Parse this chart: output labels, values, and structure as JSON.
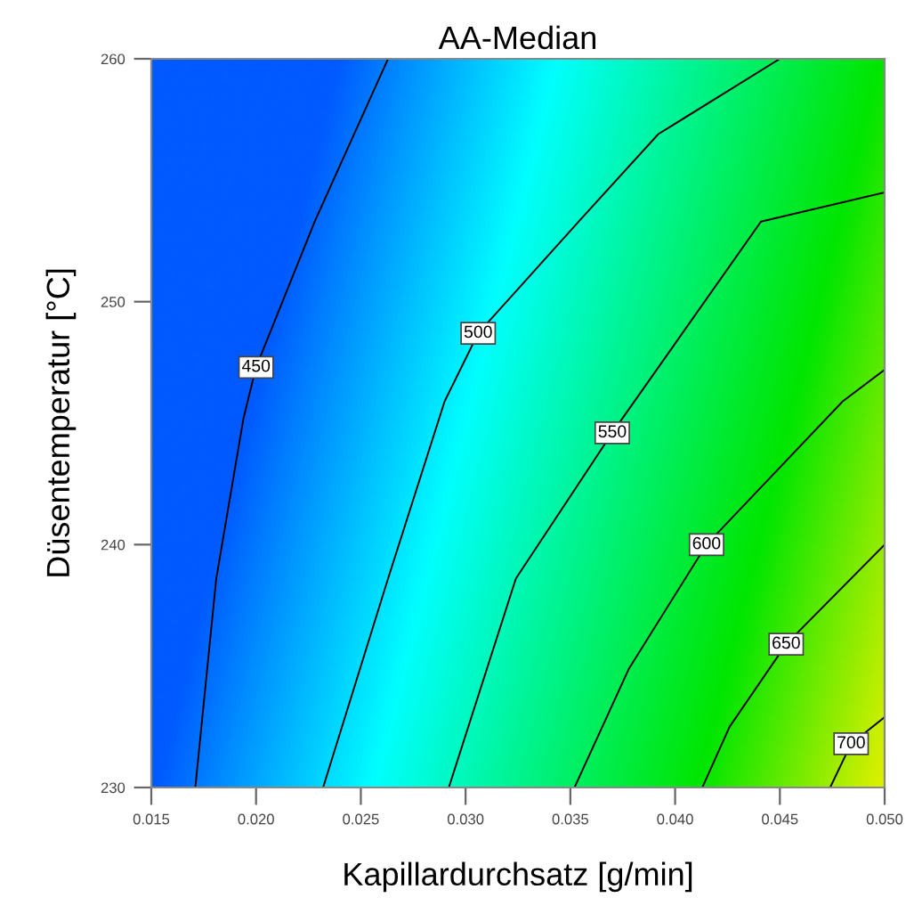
{
  "chart_data": {
    "type": "line",
    "title": "AA-Median",
    "xlabel": "Kapillardurchsatz [g/min]",
    "ylabel": "Düsentemperatur [°C]",
    "xlim": [
      0.015,
      0.05
    ],
    "ylim": [
      230,
      260
    ],
    "xticks": [
      {
        "value": 0.015,
        "label": "0.015"
      },
      {
        "value": 0.02,
        "label": "0.020"
      },
      {
        "value": 0.025,
        "label": "0.025"
      },
      {
        "value": 0.03,
        "label": "0.030"
      },
      {
        "value": 0.035,
        "label": "0.035"
      },
      {
        "value": 0.04,
        "label": "0.040"
      },
      {
        "value": 0.045,
        "label": "0.045"
      },
      {
        "value": 0.05,
        "label": "0.050"
      }
    ],
    "yticks": [
      230,
      240,
      250,
      260
    ],
    "grid": false,
    "line_style": "solid",
    "series": [
      {
        "color": "#000000",
        "x": [
          0.0171,
          0.0181,
          0.0194,
          0.02,
          0.0228,
          0.0263
        ],
        "values": [
          230,
          238.6,
          245.2,
          247.3,
          253.3,
          260
        ]
      },
      {
        "color": "#000000",
        "x": [
          0.0232,
          0.0263,
          0.029,
          0.0306,
          0.0354,
          0.0392,
          0.045
        ],
        "values": [
          230,
          238.6,
          245.9,
          248.7,
          253.3,
          256.9,
          260
        ]
      },
      {
        "color": "#000000",
        "x": [
          0.0292,
          0.0324,
          0.037,
          0.0441,
          0.05
        ],
        "values": [
          230,
          238.6,
          244.6,
          253.3,
          254.5
        ]
      },
      {
        "color": "#000000",
        "x": [
          0.0352,
          0.0378,
          0.0415,
          0.048,
          0.05
        ],
        "values": [
          230,
          234.9,
          240.0,
          245.9,
          247.2
        ]
      },
      {
        "color": "#000000",
        "x": [
          0.0413,
          0.0426,
          0.0453,
          0.05
        ],
        "values": [
          230,
          232.5,
          235.9,
          240.0
        ]
      },
      {
        "color": "#000000",
        "x": [
          0.0474,
          0.0484,
          0.05
        ],
        "values": [
          230,
          231.8,
          232.9
        ]
      }
    ],
    "annotations": [
      {
        "text": "450",
        "x": 0.02,
        "y": 247.3
      },
      {
        "text": "500",
        "x": 0.0306,
        "y": 248.7
      },
      {
        "text": "550",
        "x": 0.037,
        "y": 244.6
      },
      {
        "text": "600",
        "x": 0.0415,
        "y": 240.0
      },
      {
        "text": "650",
        "x": 0.0453,
        "y": 235.9
      },
      {
        "text": "700",
        "x": 0.0484,
        "y": 231.8
      }
    ]
  }
}
